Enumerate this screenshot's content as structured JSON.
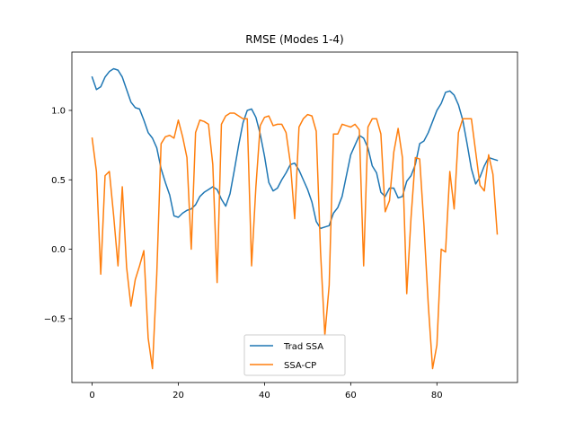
{
  "chart_data": {
    "type": "line",
    "title": "RMSE (Modes 1-4)",
    "xlabel": "",
    "ylabel": "",
    "xlim": [
      -4.7,
      98.7
    ],
    "ylim": [
      -0.96,
      1.42
    ],
    "xticks": [
      0,
      20,
      40,
      60,
      80
    ],
    "yticks": [
      -0.5,
      0.0,
      0.5,
      1.0
    ],
    "xtick_labels": [
      "0",
      "20",
      "40",
      "60",
      "80"
    ],
    "ytick_labels": [
      "−0.5",
      "0.0",
      "0.5",
      "1.0"
    ],
    "grid": false,
    "legend_position": "lower center",
    "series": [
      {
        "name": "Trad SSA",
        "color": "#1f77b4",
        "values": [
          1.24,
          1.15,
          1.17,
          1.24,
          1.28,
          1.3,
          1.29,
          1.24,
          1.15,
          1.06,
          1.02,
          1.01,
          0.93,
          0.84,
          0.8,
          0.73,
          0.58,
          0.48,
          0.39,
          0.24,
          0.23,
          0.26,
          0.28,
          0.29,
          0.32,
          0.38,
          0.41,
          0.43,
          0.45,
          0.43,
          0.36,
          0.31,
          0.4,
          0.57,
          0.75,
          0.91,
          1.0,
          1.01,
          0.95,
          0.83,
          0.67,
          0.48,
          0.42,
          0.44,
          0.5,
          0.55,
          0.61,
          0.62,
          0.57,
          0.5,
          0.43,
          0.34,
          0.2,
          0.15,
          0.16,
          0.17,
          0.26,
          0.3,
          0.38,
          0.53,
          0.68,
          0.75,
          0.82,
          0.8,
          0.73,
          0.6,
          0.55,
          0.41,
          0.38,
          0.44,
          0.44,
          0.37,
          0.38,
          0.49,
          0.53,
          0.61,
          0.76,
          0.78,
          0.84,
          0.92,
          1.0,
          1.05,
          1.13,
          1.14,
          1.11,
          1.04,
          0.93,
          0.76,
          0.58,
          0.47,
          0.52,
          0.6,
          0.66,
          0.65,
          0.64
        ]
      },
      {
        "name": "SSA-CP",
        "color": "#ff7f0e",
        "values": [
          0.8,
          0.56,
          -0.18,
          0.53,
          0.56,
          0.24,
          -0.12,
          0.45,
          -0.13,
          -0.41,
          -0.22,
          -0.12,
          -0.01,
          -0.64,
          -0.86,
          -0.18,
          0.76,
          0.81,
          0.82,
          0.8,
          0.93,
          0.81,
          0.66,
          0.0,
          0.84,
          0.93,
          0.92,
          0.9,
          0.61,
          -0.24,
          0.9,
          0.96,
          0.98,
          0.98,
          0.96,
          0.94,
          0.94,
          -0.12,
          0.45,
          0.89,
          0.95,
          0.96,
          0.89,
          0.9,
          0.9,
          0.84,
          0.62,
          0.22,
          0.88,
          0.94,
          0.97,
          0.96,
          0.85,
          -0.02,
          -0.62,
          -0.26,
          0.83,
          0.83,
          0.9,
          0.89,
          0.88,
          0.9,
          0.86,
          -0.12,
          0.88,
          0.94,
          0.94,
          0.83,
          0.27,
          0.35,
          0.7,
          0.87,
          0.66,
          -0.32,
          0.23,
          0.66,
          0.65,
          0.17,
          -0.4,
          -0.86,
          -0.69,
          0.0,
          -0.02,
          0.56,
          0.29,
          0.84,
          0.94,
          0.94,
          0.94,
          0.7,
          0.46,
          0.42,
          0.68,
          0.54,
          0.11
        ]
      }
    ]
  }
}
